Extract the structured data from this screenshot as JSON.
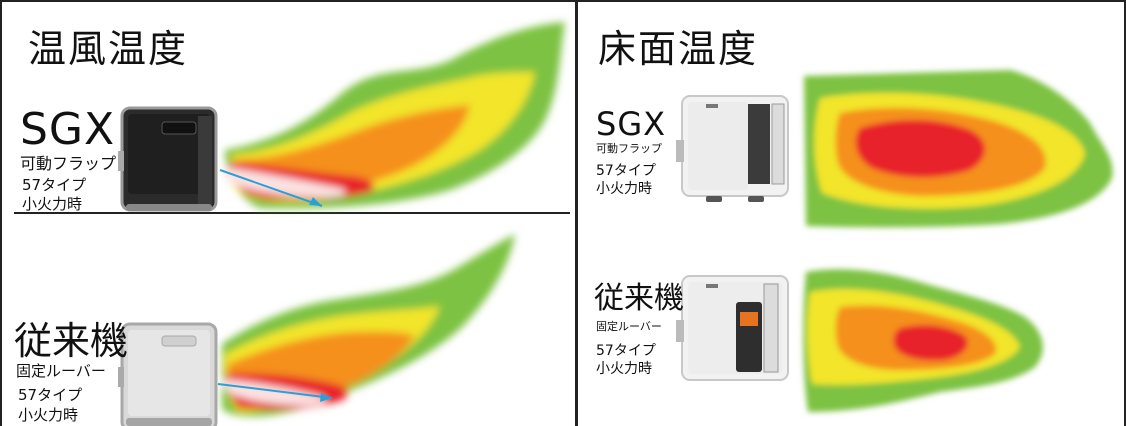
{
  "left_panel": {
    "title": "温風温度",
    "top": {
      "model": "SGX",
      "louver": "可動フラップ",
      "type": "57タイプ",
      "mode": "小火力時"
    },
    "bottom": {
      "model": "従来機",
      "louver": "固定ルーバー",
      "type": "57タイプ",
      "mode": "小火力時"
    }
  },
  "right_panel": {
    "title": "床面温度",
    "top": {
      "model": "SGX",
      "louver": "可動フラップ",
      "type": "57タイプ",
      "mode": "小火力時"
    },
    "bottom": {
      "model": "従来機",
      "louver": "固定ルーバー",
      "type": "57タイプ",
      "mode": "小火力時"
    }
  },
  "colors": {
    "green": "#7dc242",
    "yellow": "#f2e52a",
    "orange": "#f5901e",
    "red": "#e8202a",
    "white_core": "#fbe2e2",
    "arrow": "#2a9fd8",
    "border": "#222222"
  },
  "icons": [
    "heater-sgx-dark",
    "heater-conventional-light",
    "heater-sgx-white",
    "heater-conventional-white",
    "airflow-arrow"
  ]
}
